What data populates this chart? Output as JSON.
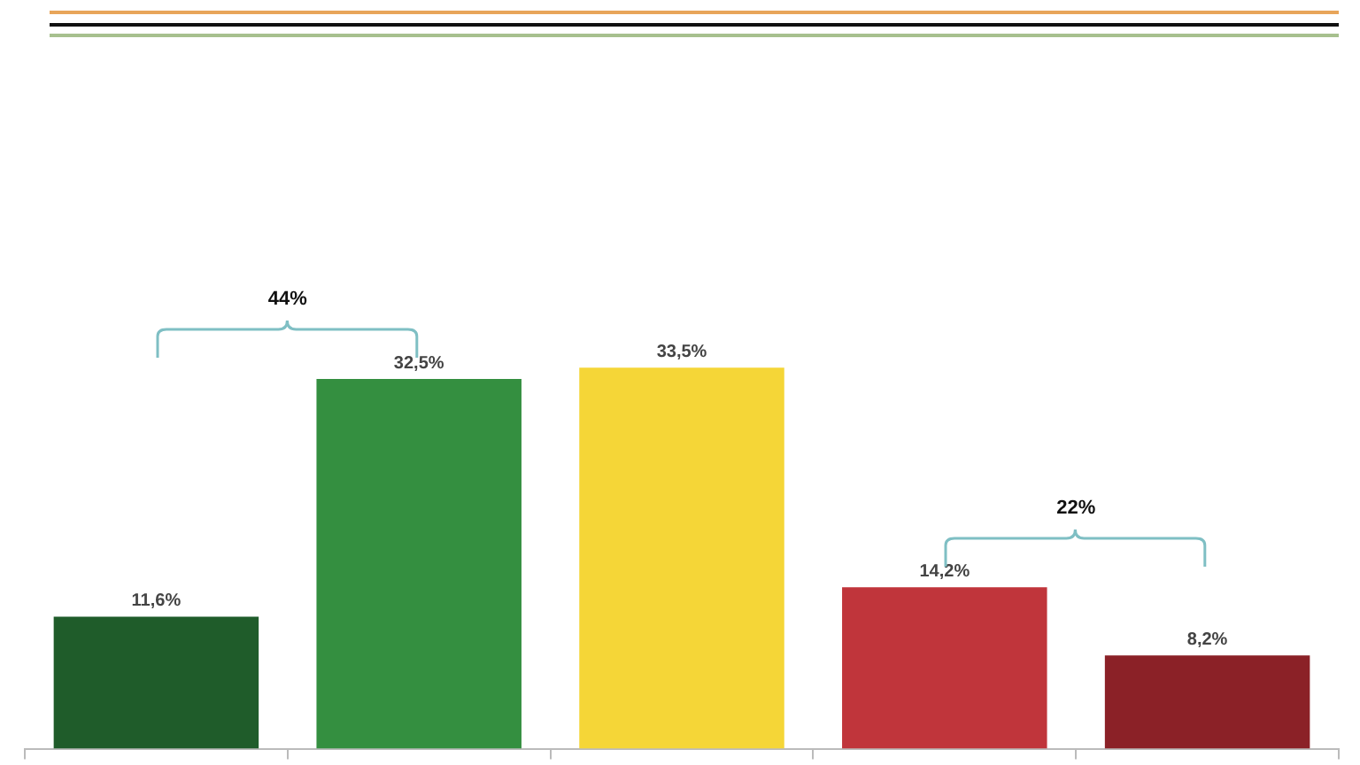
{
  "chart_data": {
    "type": "bar",
    "categories": [
      null,
      null,
      null,
      null,
      null
    ],
    "values": [
      11.6,
      32.5,
      33.5,
      14.2,
      8.2
    ],
    "colors": [
      "#1f5c2a",
      "#348f40",
      "#f5d637",
      "#c0353b",
      "#8b2127"
    ],
    "value_labels": [
      "11,6%",
      "32,5%",
      "33,5%",
      "14,2%",
      "8,2%"
    ],
    "grid": false,
    "legend": false,
    "annotations": [
      "44%",
      "22%"
    ]
  }
}
